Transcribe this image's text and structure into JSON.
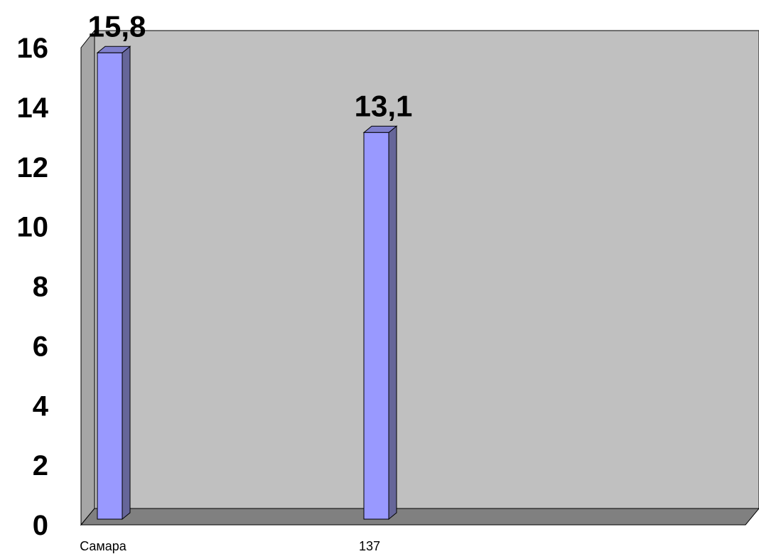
{
  "chart_data": {
    "type": "bar",
    "categories": [
      "Самара",
      "137"
    ],
    "values": [
      15.8,
      13.1
    ],
    "data_labels": [
      "15,8",
      "13,1"
    ],
    "title": "",
    "xlabel": "",
    "ylabel": "",
    "ylim": [
      0,
      16
    ],
    "yticks": [
      "0",
      "2",
      "4",
      "6",
      "8",
      "10",
      "12",
      "14",
      "16"
    ],
    "three_d": true,
    "grid": false,
    "legend": "none",
    "colors": {
      "bar_front": "#9999FF",
      "bar_side": "#666699",
      "bar_top": "#7F7FCC",
      "back_wall": "#C0C0C0",
      "floor": "#808080",
      "side_wall": "#A6A6A6"
    }
  }
}
